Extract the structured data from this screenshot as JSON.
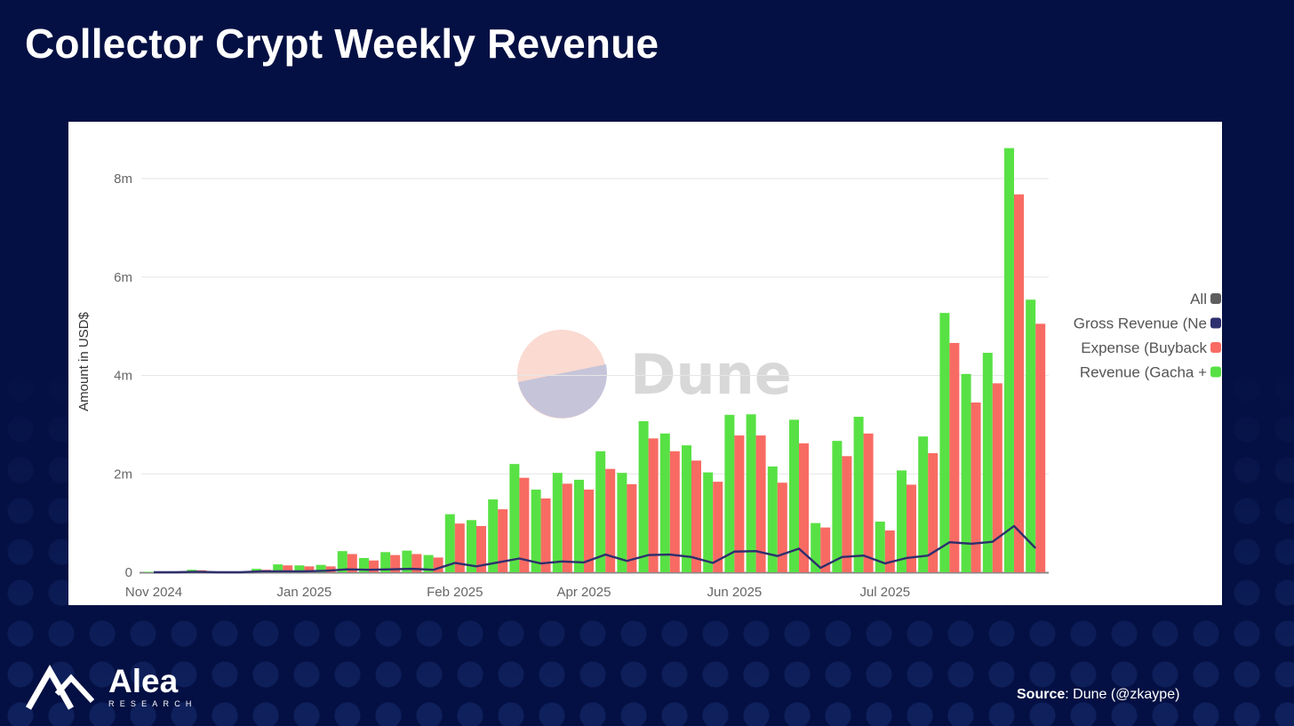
{
  "title": "Collector Crypt Weekly Revenue",
  "source": {
    "label": "Source",
    "text": ": Dune (@zkaype)"
  },
  "brand": {
    "name": "Alea",
    "sub": "RESEARCH"
  },
  "colors": {
    "background": "#041043",
    "revenue": "#58e144",
    "expense": "#f86b63",
    "gross": "#2e2f6e",
    "all": "#5e5e5e"
  },
  "watermark": "Dune",
  "chart_data": {
    "type": "bar",
    "title": "Collector Crypt Weekly Revenue",
    "xlabel": "",
    "ylabel": "Amount in USD$",
    "ylim": [
      0,
      8000000
    ],
    "yticks": [
      {
        "value": 0,
        "label": "0"
      },
      {
        "value": 2000000,
        "label": "2m"
      },
      {
        "value": 4000000,
        "label": "4m"
      },
      {
        "value": 6000000,
        "label": "6m"
      },
      {
        "value": 8000000,
        "label": "8m"
      }
    ],
    "xticks": [
      {
        "index": 0,
        "label": "Nov 2024"
      },
      {
        "index": 7,
        "label": "Jan 2025"
      },
      {
        "index": 14,
        "label": "Feb 2025"
      },
      {
        "index": 20,
        "label": "Apr 2025"
      },
      {
        "index": 27,
        "label": "Jun 2025"
      },
      {
        "index": 34,
        "label": "Jul 2025"
      }
    ],
    "grid": true,
    "legend_position": "right",
    "legend": [
      {
        "name": "All",
        "color": "#5e5e5e"
      },
      {
        "name": "Gross Revenue (Ne",
        "color": "#2e2f6e"
      },
      {
        "name": "Expense (Buyback",
        "color": "#f86b63"
      },
      {
        "name": "Revenue (Gacha +",
        "color": "#58e144"
      }
    ],
    "series": [
      {
        "name": "Revenue (Gacha +",
        "type": "bar",
        "values": [
          0.01,
          0.02,
          0.05,
          0,
          0,
          0.07,
          0.16,
          0.14,
          0.15,
          0.43,
          0.29,
          0.41,
          0.44,
          0.35,
          1.18,
          1.06,
          1.48,
          2.2,
          1.68,
          2.02,
          1.88,
          2.46,
          2.02,
          3.07,
          2.82,
          2.58,
          2.03,
          3.2,
          3.21,
          2.15,
          3.1,
          1.0,
          2.67,
          3.16,
          1.03,
          2.07,
          2.76,
          5.27,
          4.03,
          4.46,
          8.62,
          5.54
        ]
      },
      {
        "name": "Expense (Buyback",
        "type": "bar",
        "values": [
          0,
          0.02,
          0.04,
          0,
          0,
          0.05,
          0.14,
          0.12,
          0.12,
          0.37,
          0.24,
          0.35,
          0.37,
          0.3,
          0.99,
          0.94,
          1.28,
          1.92,
          1.5,
          1.8,
          1.68,
          2.1,
          1.79,
          2.72,
          2.46,
          2.27,
          1.84,
          2.78,
          2.78,
          1.82,
          2.62,
          0.91,
          2.36,
          2.82,
          0.85,
          1.78,
          2.42,
          4.66,
          3.45,
          3.84,
          7.68,
          5.05
        ]
      },
      {
        "name": "Gross Revenue (Ne",
        "type": "line",
        "values": [
          0,
          0,
          0.01,
          0,
          0,
          0.02,
          0.02,
          0.02,
          0.03,
          0.06,
          0.05,
          0.06,
          0.07,
          0.05,
          0.19,
          0.12,
          0.2,
          0.28,
          0.18,
          0.22,
          0.2,
          0.36,
          0.23,
          0.35,
          0.36,
          0.31,
          0.19,
          0.42,
          0.43,
          0.33,
          0.48,
          0.09,
          0.31,
          0.34,
          0.18,
          0.29,
          0.34,
          0.61,
          0.58,
          0.62,
          0.94,
          0.49
        ]
      }
    ],
    "value_unit": "million USD"
  }
}
